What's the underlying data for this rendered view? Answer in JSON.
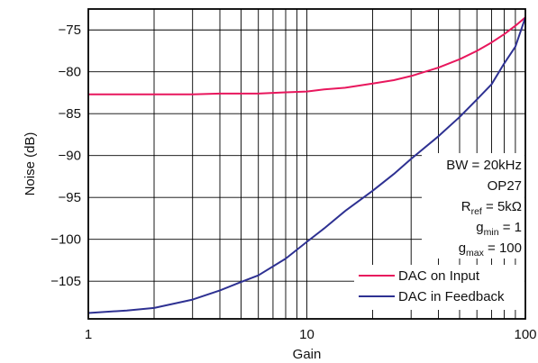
{
  "chart_data": {
    "type": "line",
    "xlabel": "Gain",
    "ylabel": "Noise (dB)",
    "x_scale": "log",
    "xlim": [
      1,
      100
    ],
    "ylim": [
      -109.5,
      -72.5
    ],
    "x_ticks": [
      1,
      10,
      100
    ],
    "x_tick_labels": [
      "1",
      "10",
      "100"
    ],
    "y_ticks": [
      -75,
      -80,
      -85,
      -90,
      -95,
      -100,
      -105
    ],
    "y_tick_labels": [
      "−75",
      "−80",
      "−85",
      "−90",
      "−95",
      "−100",
      "−105"
    ],
    "grid": true,
    "legend_position": "bottom-right",
    "annotations": [
      {
        "main": "BW = 20kHz"
      },
      {
        "main": "OP27"
      },
      {
        "main": "R",
        "sub": "ref",
        "tail": " = 5kΩ"
      },
      {
        "main": "g",
        "sub": "min",
        "tail": " = 1"
      },
      {
        "main": "g",
        "sub": "max",
        "tail": " = 100"
      }
    ],
    "series": [
      {
        "name": "DAC on Input",
        "color": "#e8175d",
        "x": [
          1,
          1.5,
          2,
          3,
          4,
          6,
          8,
          10,
          12,
          15,
          20,
          25,
          30,
          40,
          50,
          60,
          70,
          80,
          90,
          100
        ],
        "y": [
          -82.7,
          -82.7,
          -82.7,
          -82.7,
          -82.6,
          -82.6,
          -82.45,
          -82.35,
          -82.1,
          -81.9,
          -81.4,
          -81.0,
          -80.5,
          -79.5,
          -78.5,
          -77.5,
          -76.5,
          -75.5,
          -74.5,
          -73.5
        ]
      },
      {
        "name": "DAC in Feedback",
        "color": "#2e3192",
        "x": [
          1,
          1.5,
          2,
          3,
          4,
          5,
          6,
          8,
          10,
          12,
          15,
          20,
          25,
          30,
          40,
          50,
          60,
          70,
          80,
          90,
          100
        ],
        "y": [
          -108.8,
          -108.5,
          -108.2,
          -107.2,
          -106.1,
          -105.1,
          -104.3,
          -102.3,
          -100.3,
          -98.7,
          -96.6,
          -94.2,
          -92.2,
          -90.4,
          -87.7,
          -85.4,
          -83.3,
          -81.5,
          -79.0,
          -77.0,
          -73.5
        ]
      }
    ]
  }
}
